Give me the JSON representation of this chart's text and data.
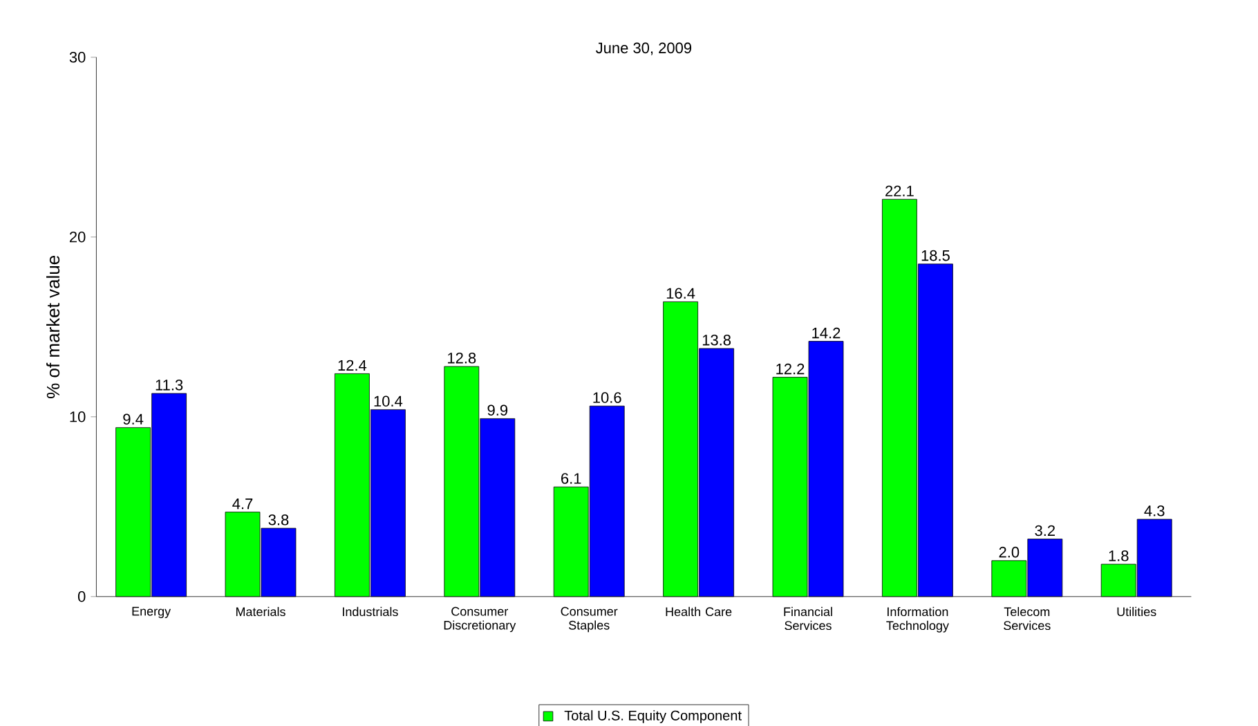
{
  "chart_data": {
    "type": "bar",
    "title": "June 30, 2009",
    "ylabel": "% of market value",
    "categories": [
      "Energy",
      "Materials",
      "Industrials",
      "Consumer Discretionary",
      "Consumer Staples",
      "Health Care",
      "Financial Services",
      "Information Technology",
      "Telecom Services",
      "Utilities"
    ],
    "series": [
      {
        "name": "Total U.S. Equity Component",
        "color": "#00ff00",
        "values": [
          9.4,
          4.7,
          12.4,
          12.8,
          6.1,
          16.4,
          12.2,
          22.1,
          2.0,
          1.8
        ],
        "value_labels": [
          "9.4",
          "4.7",
          "12.4",
          "12.8",
          "6.1",
          "16.4",
          "12.2",
          "22.1",
          "2.0",
          "1.8"
        ]
      },
      {
        "color": "#0000ff",
        "values": [
          11.3,
          3.8,
          10.4,
          9.9,
          10.6,
          13.8,
          14.2,
          18.5,
          3.2,
          4.3
        ]
      }
    ],
    "ylim": [
      0,
      30
    ],
    "yticks": [
      0,
      10,
      20,
      30
    ],
    "data_labels": true,
    "legend": "bottom",
    "grid": false
  }
}
